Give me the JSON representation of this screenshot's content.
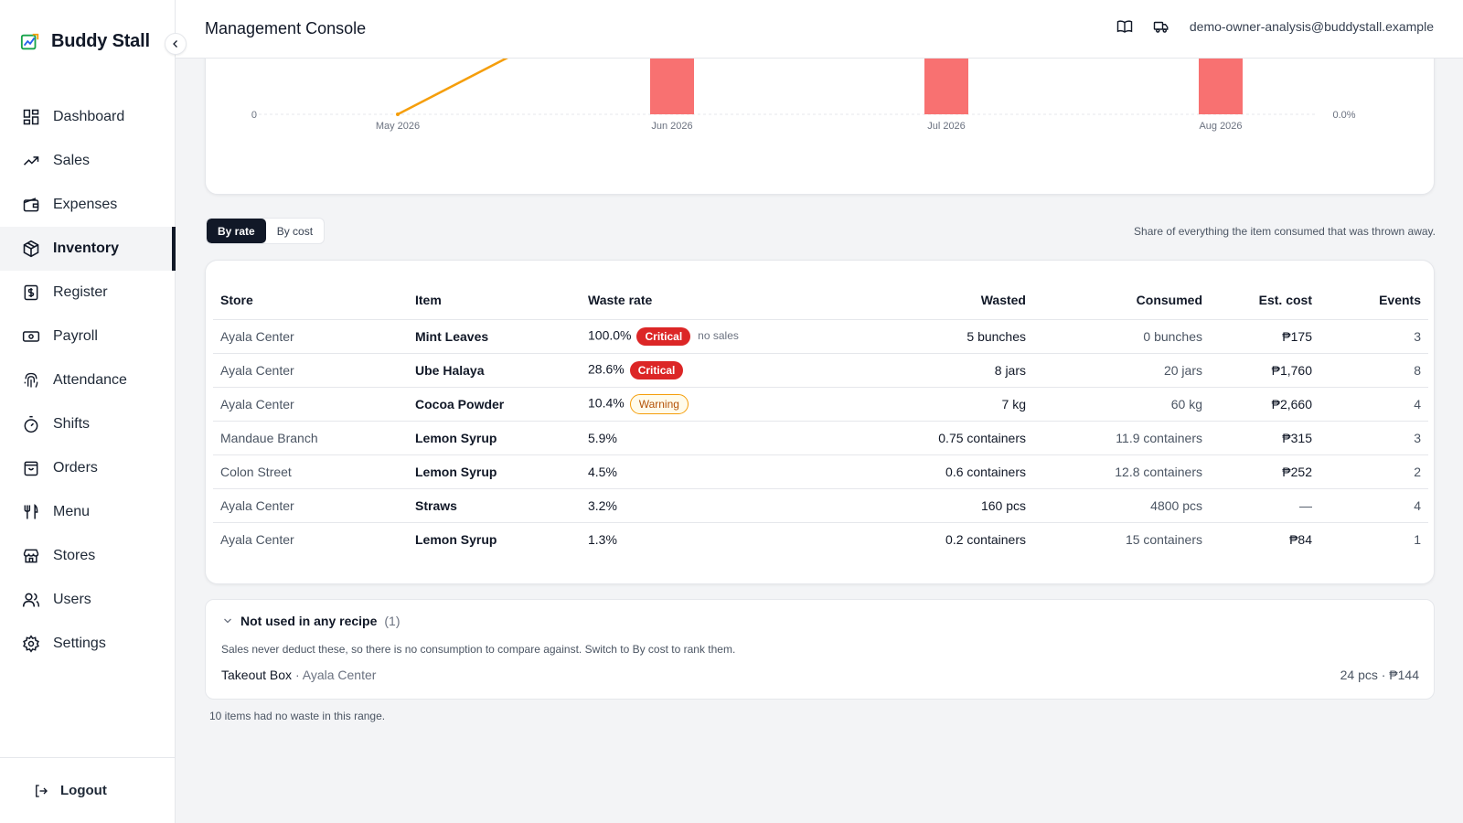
{
  "brand": {
    "name": "Buddy Stall"
  },
  "sidebar": {
    "items": [
      {
        "label": "Dashboard",
        "icon": "dashboard-icon"
      },
      {
        "label": "Sales",
        "icon": "trending-up-icon"
      },
      {
        "label": "Expenses",
        "icon": "wallet-icon"
      },
      {
        "label": "Inventory",
        "icon": "box-icon",
        "active": true
      },
      {
        "label": "Register",
        "icon": "receipt-icon"
      },
      {
        "label": "Payroll",
        "icon": "banknote-icon"
      },
      {
        "label": "Attendance",
        "icon": "fingerprint-icon"
      },
      {
        "label": "Shifts",
        "icon": "timer-icon"
      },
      {
        "label": "Orders",
        "icon": "bag-icon"
      },
      {
        "label": "Menu",
        "icon": "utensils-icon"
      },
      {
        "label": "Stores",
        "icon": "store-icon"
      },
      {
        "label": "Users",
        "icon": "users-icon"
      },
      {
        "label": "Settings",
        "icon": "gear-icon"
      }
    ],
    "logout_label": "Logout"
  },
  "header": {
    "title": "Management Console",
    "user_email": "demo-owner-analysis@buddystall.example"
  },
  "chart_data": {
    "type": "bar",
    "categories": [
      "May 2026",
      "Jun 2026",
      "Jul 2026",
      "Aug 2026"
    ],
    "y_left_ticks": [
      "0"
    ],
    "y_right_ticks": [
      "0.0%"
    ],
    "bar_color": "#f87171",
    "line_color": "#f59e0b"
  },
  "toggle": {
    "by_rate": "By rate",
    "by_cost": "By cost",
    "active": "by_rate"
  },
  "hint": "Share of everything the item consumed that was thrown away.",
  "table": {
    "headers": {
      "store": "Store",
      "item": "Item",
      "rate": "Waste rate",
      "wasted": "Wasted",
      "consumed": "Consumed",
      "cost": "Est. cost",
      "events": "Events"
    },
    "rows": [
      {
        "store": "Ayala Center",
        "item": "Mint Leaves",
        "rate": "100.0%",
        "badge": "Critical",
        "badge_type": "critical",
        "note": "no sales",
        "wasted": "5 bunches",
        "consumed": "0 bunches",
        "cost": "₱175",
        "events": "3"
      },
      {
        "store": "Ayala Center",
        "item": "Ube Halaya",
        "rate": "28.6%",
        "badge": "Critical",
        "badge_type": "critical",
        "note": "",
        "wasted": "8 jars",
        "consumed": "20 jars",
        "cost": "₱1,760",
        "events": "8"
      },
      {
        "store": "Ayala Center",
        "item": "Cocoa Powder",
        "rate": "10.4%",
        "badge": "Warning",
        "badge_type": "warning",
        "note": "",
        "wasted": "7 kg",
        "consumed": "60 kg",
        "cost": "₱2,660",
        "events": "4"
      },
      {
        "store": "Mandaue Branch",
        "item": "Lemon Syrup",
        "rate": "5.9%",
        "badge": "",
        "badge_type": "",
        "note": "",
        "wasted": "0.75 containers",
        "consumed": "11.9 containers",
        "cost": "₱315",
        "events": "3"
      },
      {
        "store": "Colon Street",
        "item": "Lemon Syrup",
        "rate": "4.5%",
        "badge": "",
        "badge_type": "",
        "note": "",
        "wasted": "0.6 containers",
        "consumed": "12.8 containers",
        "cost": "₱252",
        "events": "2"
      },
      {
        "store": "Ayala Center",
        "item": "Straws",
        "rate": "3.2%",
        "badge": "",
        "badge_type": "",
        "note": "",
        "wasted": "160 pcs",
        "consumed": "4800 pcs",
        "cost": "—",
        "events": "4"
      },
      {
        "store": "Ayala Center",
        "item": "Lemon Syrup",
        "rate": "1.3%",
        "badge": "",
        "badge_type": "",
        "note": "",
        "wasted": "0.2 containers",
        "consumed": "15 containers",
        "cost": "₱84",
        "events": "1"
      }
    ]
  },
  "unused": {
    "title": "Not used in any recipe",
    "count": "(1)",
    "description": "Sales never deduct these, so there is no consumption to compare against. Switch to By cost to rank them.",
    "item": "Takeout Box",
    "separator": " · ",
    "store": "Ayala Center",
    "value": "24 pcs · ₱144"
  },
  "footnote": "10 items had no waste in this range."
}
